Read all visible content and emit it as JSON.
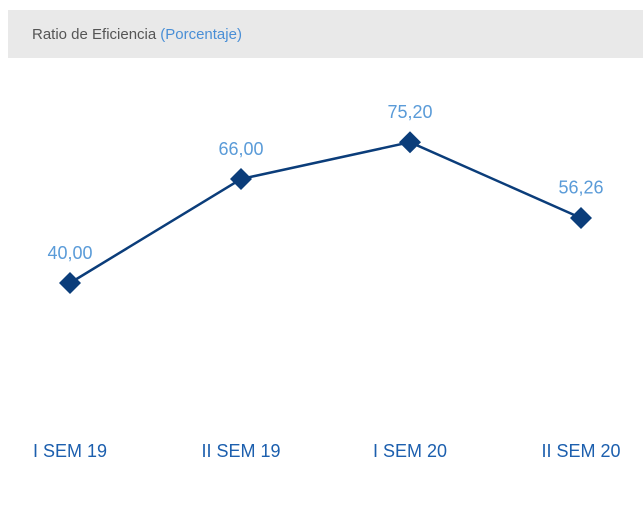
{
  "chart_data": {
    "type": "line",
    "title": "Ratio de Eficiencia",
    "unit_label": "(Porcentaje)",
    "categories": [
      "I SEM 19",
      "II SEM 19",
      "I SEM 20",
      "II SEM 20"
    ],
    "series": [
      {
        "color": "#0b3d7a",
        "values": [
          40.0,
          66.0,
          75.2,
          56.26
        ],
        "value_labels": [
          "40,00",
          "66,00",
          "75,20",
          "56,26"
        ]
      }
    ]
  }
}
